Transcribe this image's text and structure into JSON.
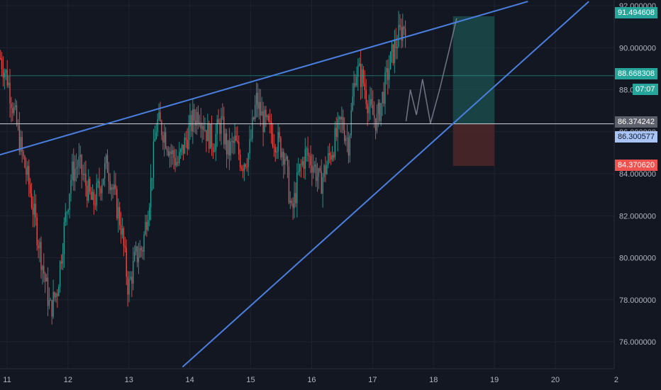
{
  "chart_data": {
    "type": "candlestick",
    "y_ticks": [
      76,
      78,
      80,
      82,
      84,
      86,
      88,
      90,
      92
    ],
    "y_tick_labels": [
      "76.000000",
      "78.000000",
      "80.000000",
      "82.000000",
      "84.000000",
      "86.000000",
      "88.000000",
      "90.000000",
      "92.000000"
    ],
    "x_ticks": [
      "11",
      "12",
      "13",
      "14",
      "15",
      "16",
      "17",
      "18",
      "19",
      "20",
      "2"
    ],
    "ylim": [
      74.8,
      92.0
    ],
    "xlim": [
      10.88,
      20.95
    ],
    "grid": true,
    "series": [
      {
        "values_mid": [
          89.5,
          88.5,
          86.8,
          85.0,
          83.5,
          81.5,
          79.5,
          77.5,
          78.5,
          81.5,
          84.0,
          84.5,
          83.5,
          82.5,
          83.5,
          84.5,
          83.0,
          81.5,
          78.5,
          80.0,
          80.5,
          83.0,
          86.5,
          86.0,
          85.0,
          84.5,
          85.5,
          86.5,
          87.0,
          86.0,
          85.5,
          86.5,
          85.0,
          85.5,
          84.5,
          85.0,
          87.5,
          86.5,
          86.0,
          85.5,
          85.0,
          82.0,
          84.0,
          85.0,
          84.5,
          83.5,
          84.5,
          85.5,
          86.5,
          85.5,
          89.0,
          88.5,
          87.0,
          86.5,
          88.0,
          89.5,
          90.5,
          91.2
        ]
      }
    ],
    "price_levels": {
      "top_tag": "91.494608",
      "mid_tag": "88.668308",
      "countdown": "07:07",
      "entry_tag": "86.374242",
      "blue_tag": "86.300577",
      "stop_tag": "84.370620",
      "level_upper": 88.668308,
      "level_entry": 86.374242,
      "level_target": 91.494608,
      "level_stop": 84.37062
    },
    "trendlines": [
      {
        "from": [
          10.88,
          84.9
        ],
        "to": [
          19.55,
          92.2
        ]
      },
      {
        "from": [
          13.88,
          74.8
        ],
        "to": [
          20.55,
          92.2
        ]
      }
    ],
    "colors": {
      "up": "#26a69a",
      "down": "#ef5350",
      "trendline": "#4a7fe0",
      "target_zone": "#1a4a4a",
      "stop_zone": "#4a2628",
      "tag_green": "#26a69a",
      "tag_blue": "#a8c4f5",
      "tag_red": "#ef5350",
      "tag_gray": "#5d606b"
    }
  }
}
